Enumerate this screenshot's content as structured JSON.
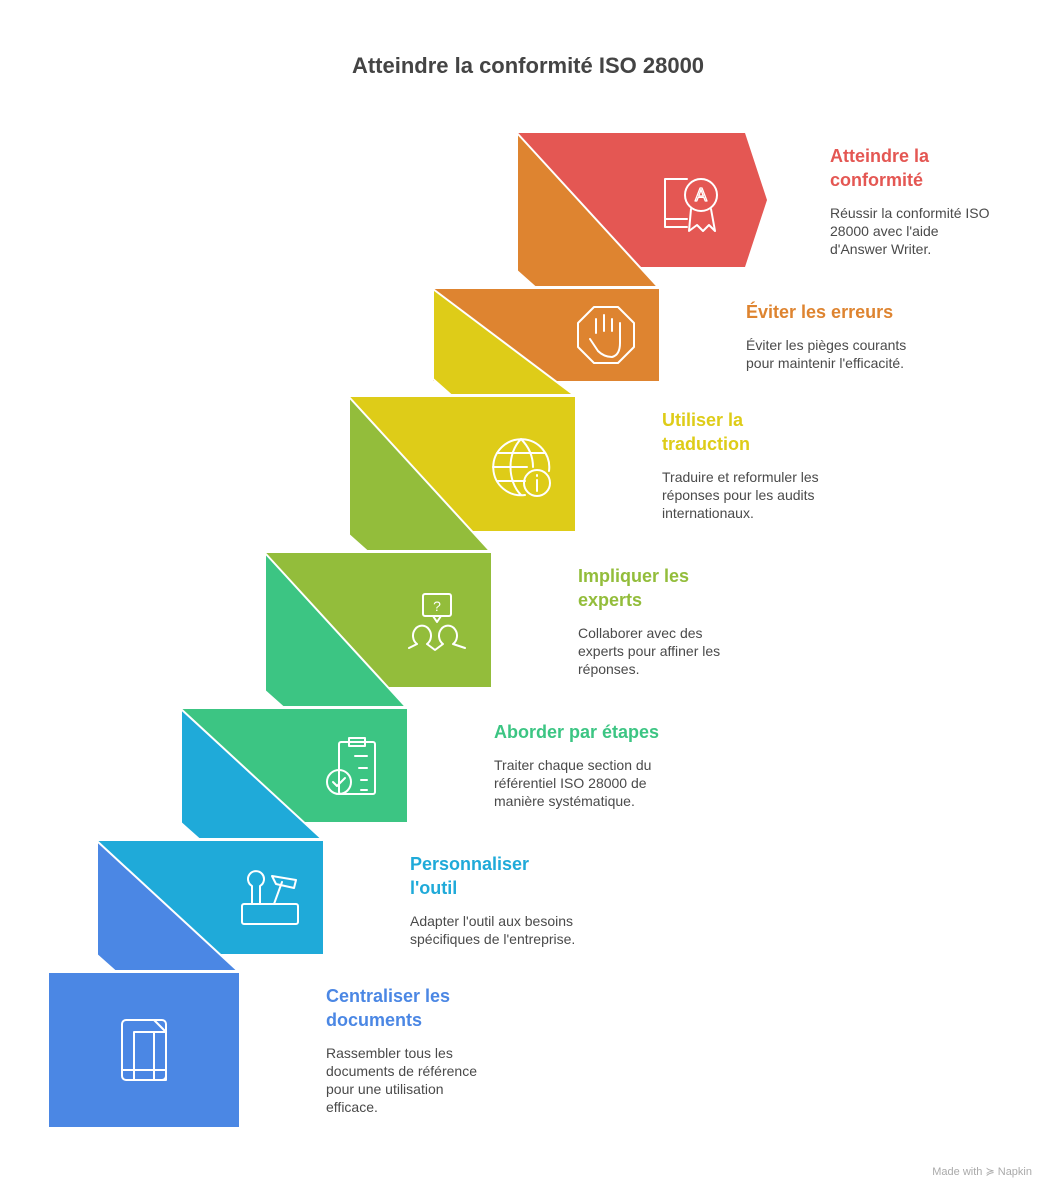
{
  "title": "Atteindre la conformité ISO 28000",
  "steps": [
    {
      "title": "Centraliser les\ndocuments",
      "description": "Rassembler tous les\ndocuments de référence\npour une utilisation\nefficace.",
      "color": "#4B87E4",
      "icon": "document-icon"
    },
    {
      "title": "Personnaliser\nl'outil",
      "description": "Adapter l'outil aux besoins\nspécifiques de l'entreprise.",
      "color": "#1FAAD9",
      "icon": "toolbox-icon"
    },
    {
      "title": "Aborder par étapes",
      "description": "Traiter chaque section du\nréférentiel ISO 28000 de\nmanière systématique.",
      "color": "#3CC583",
      "icon": "clipboard-check-icon"
    },
    {
      "title": "Impliquer les\nexperts",
      "description": "Collaborer avec des\nexperts pour affiner les\nréponses.",
      "color": "#93BD3B",
      "icon": "experts-question-icon"
    },
    {
      "title": "Utiliser la\ntraduction",
      "description": "Traduire et reformuler les\nréponses pour les audits\ninternationaux.",
      "color": "#DECC18",
      "icon": "globe-info-icon"
    },
    {
      "title": "Éviter les erreurs",
      "description": "Éviter les pièges courants\npour maintenir l'efficacité.",
      "color": "#DE8430",
      "icon": "stop-hand-icon"
    },
    {
      "title": "Atteindre la\nconformité",
      "description": "Réussir la conformité ISO\n28000 avec l'aide\nd'Answer Writer.",
      "color": "#E45753",
      "icon": "certificate-award-icon"
    }
  ],
  "footer": {
    "text": "Made with",
    "brand": "Napkin"
  }
}
